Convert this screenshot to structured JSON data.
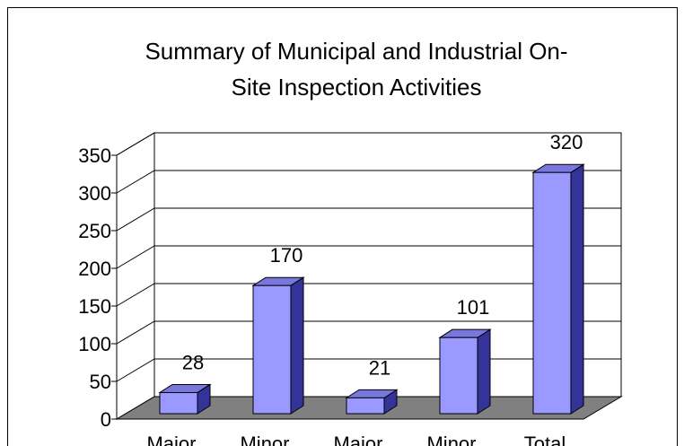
{
  "chart_data": {
    "type": "bar3d",
    "title": [
      "Summary of Municipal and Industrial On-",
      "Site Inspection Activities"
    ],
    "categories": [
      "Major",
      "Minor",
      "Major",
      "Minor",
      "Total"
    ],
    "values": [
      28,
      170,
      21,
      101,
      320
    ],
    "color": "#9999ff",
    "ylim": [
      0,
      350
    ],
    "yticks": [
      0,
      50,
      100,
      150,
      200,
      250,
      300,
      350
    ],
    "grid": true
  }
}
